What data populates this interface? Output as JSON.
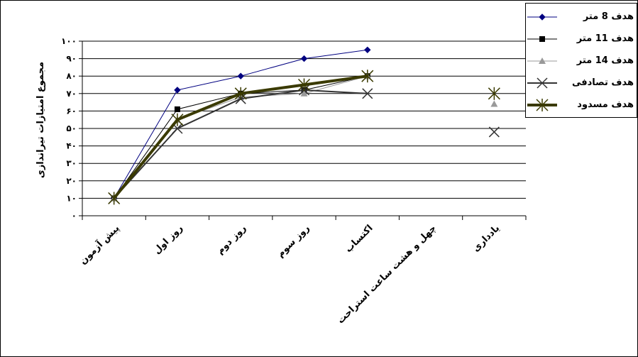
{
  "chart_data": {
    "type": "line",
    "ylabel": "مجموع امتیازات تیراندازی",
    "ylim": [
      0,
      100
    ],
    "y_ticks": [
      "۰",
      "۱۰",
      "۲۰",
      "۳۰",
      "۴۰",
      "۵۰",
      "۶۰",
      "۷۰",
      "۸۰",
      "۹۰",
      "۱۰۰"
    ],
    "y_tick_values": [
      0,
      10,
      20,
      30,
      40,
      50,
      60,
      70,
      80,
      90,
      100
    ],
    "grid": true,
    "legend_position": "top-right",
    "categories": [
      "پیش آزمون",
      "روز اول",
      "روز دوم",
      "روز سوم",
      "اکتساب",
      "چهل و هشت ساعت استراحت",
      "یادداری"
    ],
    "series": [
      {
        "name": "هدف 8 متر",
        "color": "#000080",
        "marker": "diamond",
        "width": 1,
        "values": [
          10,
          72,
          80,
          90,
          95,
          null,
          null
        ]
      },
      {
        "name": "هدف 11 متر",
        "color": "#000000",
        "marker": "square",
        "width": 1,
        "values": [
          10,
          61,
          70,
          72,
          80,
          null,
          null
        ]
      },
      {
        "name": "هدف 14 متر",
        "color": "#999999",
        "marker": "triangle",
        "width": 1,
        "values": [
          10,
          55,
          68,
          70,
          80,
          null,
          64
        ]
      },
      {
        "name": "هدف تصادفی",
        "color": "#333333",
        "marker": "x",
        "width": 2,
        "values": [
          10,
          50,
          67,
          72,
          70,
          null,
          48
        ]
      },
      {
        "name": "هدف مسدود",
        "color": "#3a3a00",
        "marker": "star",
        "width": 4,
        "values": [
          10,
          55,
          70,
          75,
          80,
          null,
          70
        ]
      }
    ]
  }
}
